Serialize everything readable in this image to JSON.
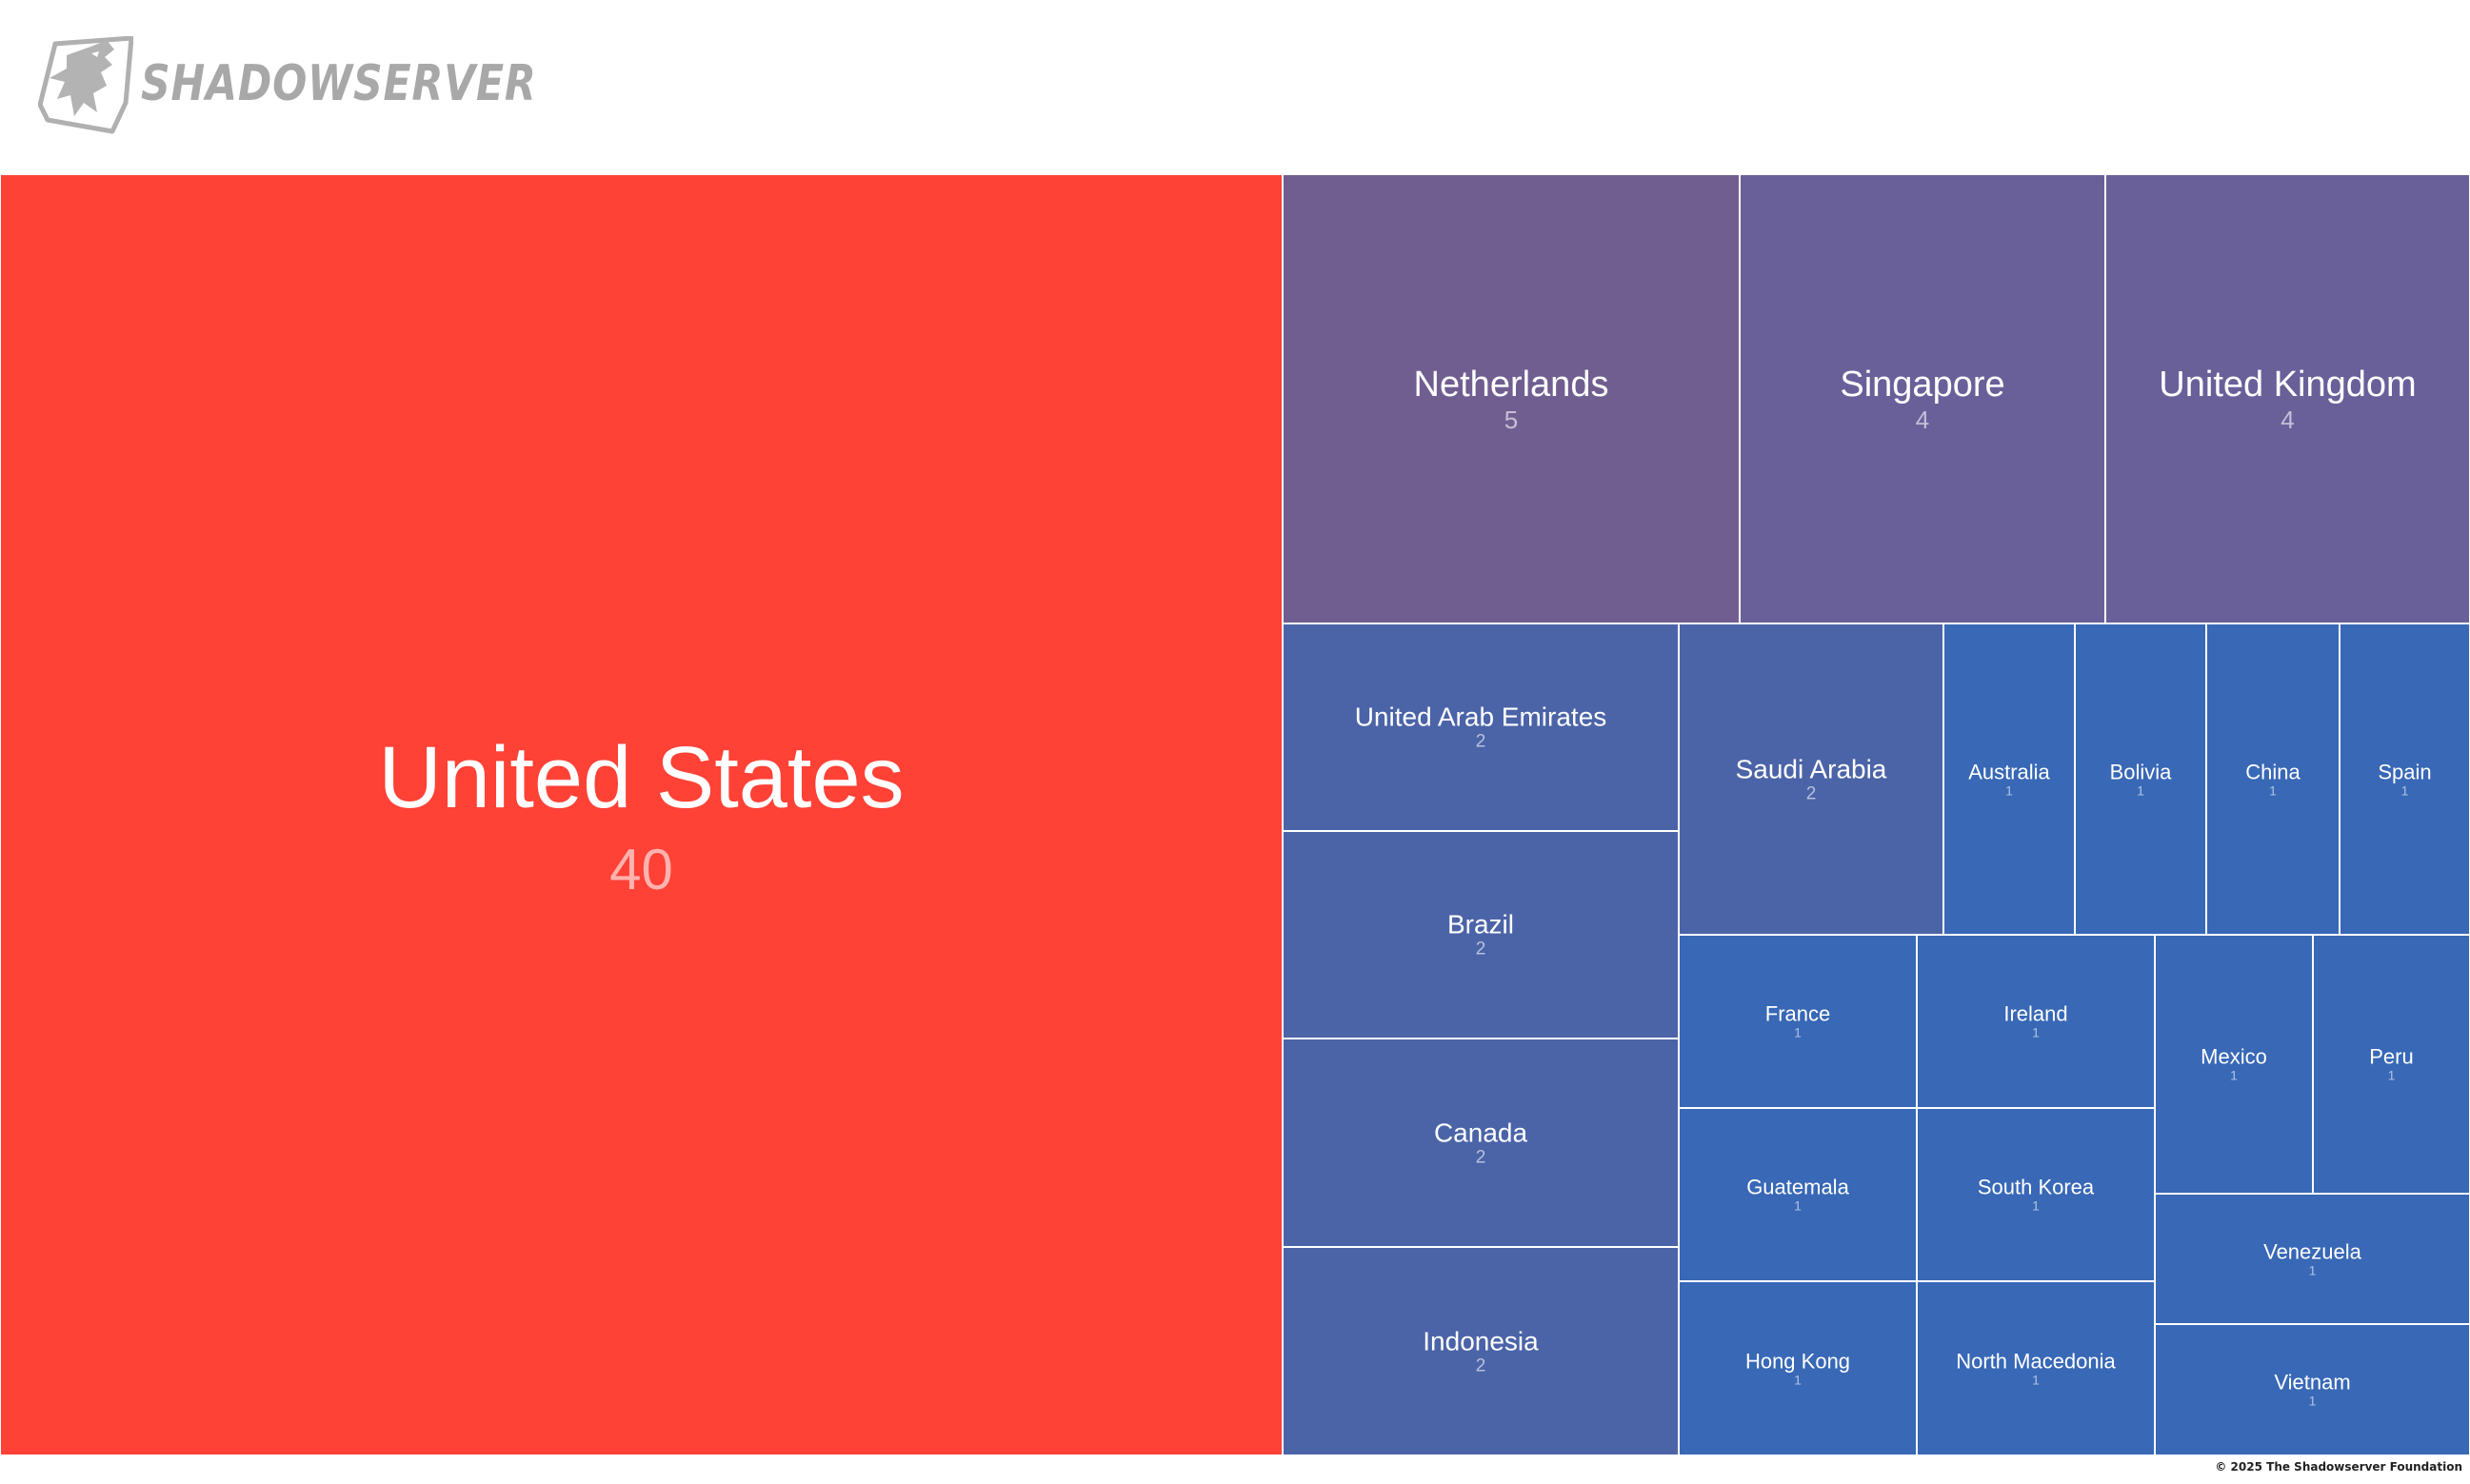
{
  "header": {
    "logo_text": "SHADOWSERVER",
    "logo_icon": "shadowserver-wolf-logo-icon"
  },
  "footer": {
    "copyright": "© 2025 The Shadowserver Foundation"
  },
  "colors": {
    "highest": "#ff4136",
    "high": "#705e91",
    "mid": "#4b64a8",
    "low": "#3868b6"
  },
  "chart_data": {
    "type": "treemap",
    "items": [
      {
        "name": "United States",
        "value": 40
      },
      {
        "name": "Netherlands",
        "value": 5
      },
      {
        "name": "Singapore",
        "value": 4
      },
      {
        "name": "United Kingdom",
        "value": 4
      },
      {
        "name": "United Arab Emirates",
        "value": 2
      },
      {
        "name": "Brazil",
        "value": 2
      },
      {
        "name": "Canada",
        "value": 2
      },
      {
        "name": "Indonesia",
        "value": 2
      },
      {
        "name": "Saudi Arabia",
        "value": 2
      },
      {
        "name": "Australia",
        "value": 1
      },
      {
        "name": "Bolivia",
        "value": 1
      },
      {
        "name": "China",
        "value": 1
      },
      {
        "name": "Spain",
        "value": 1
      },
      {
        "name": "France",
        "value": 1
      },
      {
        "name": "Ireland",
        "value": 1
      },
      {
        "name": "Mexico",
        "value": 1
      },
      {
        "name": "Peru",
        "value": 1
      },
      {
        "name": "Guatemala",
        "value": 1
      },
      {
        "name": "South Korea",
        "value": 1
      },
      {
        "name": "Venezuela",
        "value": 1
      },
      {
        "name": "Hong Kong",
        "value": 1
      },
      {
        "name": "North Macedonia",
        "value": 1
      },
      {
        "name": "Vietnam",
        "value": 1
      }
    ]
  }
}
